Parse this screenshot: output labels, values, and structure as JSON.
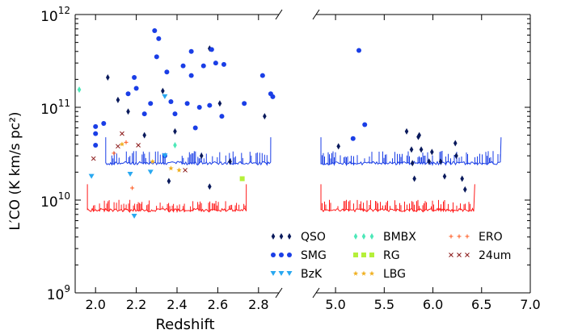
{
  "chart_data": {
    "type": "scatter",
    "title": "",
    "xlabel": "Redshift",
    "ylabel": "L′CO (K km/s pc²)",
    "y_scale": "log",
    "ylim": [
      1000000000.0,
      1000000000000.0
    ],
    "y_ticks": [
      {
        "value": 1000000000.0,
        "base": "10",
        "exp": "9"
      },
      {
        "value": 10000000000.0,
        "base": "10",
        "exp": "10"
      },
      {
        "value": 100000000000.0,
        "base": "10",
        "exp": "11"
      },
      {
        "value": 1000000000000.0,
        "base": "10",
        "exp": "12"
      }
    ],
    "panels": [
      {
        "name": "left",
        "xlim": [
          1.9,
          2.9
        ],
        "x_ticks": [
          "2.0",
          "2.2",
          "2.4",
          "2.6",
          "2.8"
        ]
      },
      {
        "name": "right",
        "xlim": [
          4.8,
          7.0
        ],
        "x_ticks": [
          "5.0",
          "5.5",
          "6.0",
          "6.5",
          "7.0"
        ]
      }
    ],
    "series": [
      {
        "name": "QSO",
        "marker": "diamond",
        "color": "#0a1a5c",
        "points": [
          [
            2.06,
            210000000000.0
          ],
          [
            2.11,
            120000000000.0
          ],
          [
            2.16,
            90000000000.0
          ],
          [
            2.24,
            50000000000.0
          ],
          [
            2.33,
            150000000000.0
          ],
          [
            2.36,
            16000000000.0
          ],
          [
            2.39,
            55000000000.0
          ],
          [
            2.52,
            30000000000.0
          ],
          [
            2.56,
            14000000000.0
          ],
          [
            2.56,
            430000000000.0
          ],
          [
            2.61,
            110000000000.0
          ],
          [
            2.66,
            26000000000.0
          ],
          [
            2.83,
            80000000000.0
          ],
          [
            5.03,
            38000000000.0
          ],
          [
            5.73,
            55000000000.0
          ],
          [
            5.78,
            35000000000.0
          ],
          [
            5.79,
            25000000000.0
          ],
          [
            5.81,
            17000000000.0
          ],
          [
            5.85,
            48000000000.0
          ],
          [
            5.86,
            50000000000.0
          ],
          [
            5.88,
            35000000000.0
          ],
          [
            5.96,
            26000000000.0
          ],
          [
            5.99,
            33000000000.0
          ],
          [
            6.08,
            26000000000.0
          ],
          [
            6.12,
            18000000000.0
          ],
          [
            6.23,
            41000000000.0
          ],
          [
            6.24,
            30000000000.0
          ],
          [
            6.3,
            17000000000.0
          ],
          [
            6.33,
            13000000000.0
          ]
        ]
      },
      {
        "name": "SMG",
        "marker": "circle",
        "color": "#1a3ee6",
        "points": [
          [
            2.0,
            62000000000.0
          ],
          [
            2.0,
            52000000000.0
          ],
          [
            2.0,
            39000000000.0
          ],
          [
            2.04,
            67000000000.0
          ],
          [
            2.16,
            140000000000.0
          ],
          [
            2.19,
            210000000000.0
          ],
          [
            2.2,
            160000000000.0
          ],
          [
            2.24,
            85000000000.0
          ],
          [
            2.27,
            110000000000.0
          ],
          [
            2.29,
            670000000000.0
          ],
          [
            2.3,
            350000000000.0
          ],
          [
            2.31,
            550000000000.0
          ],
          [
            2.34,
            30000000000.0
          ],
          [
            2.35,
            240000000000.0
          ],
          [
            2.37,
            115000000000.0
          ],
          [
            2.39,
            85000000000.0
          ],
          [
            2.43,
            280000000000.0
          ],
          [
            2.45,
            110000000000.0
          ],
          [
            2.47,
            400000000000.0
          ],
          [
            2.47,
            220000000000.0
          ],
          [
            2.49,
            60000000000.0
          ],
          [
            2.51,
            100000000000.0
          ],
          [
            2.53,
            280000000000.0
          ],
          [
            2.56,
            105000000000.0
          ],
          [
            2.57,
            420000000000.0
          ],
          [
            2.59,
            300000000000.0
          ],
          [
            2.62,
            80000000000.0
          ],
          [
            2.63,
            290000000000.0
          ],
          [
            2.73,
            110000000000.0
          ],
          [
            2.82,
            220000000000.0
          ],
          [
            2.86,
            140000000000.0
          ],
          [
            2.87,
            130000000000.0
          ],
          [
            5.18,
            46000000000.0
          ],
          [
            5.24,
            410000000000.0
          ],
          [
            5.3,
            65000000000.0
          ]
        ]
      },
      {
        "name": "BzK",
        "marker": "triangle-down",
        "color": "#29a8f0",
        "points": [
          [
            1.98,
            18000000000.0
          ],
          [
            2.17,
            19000000000.0
          ],
          [
            2.19,
            6700000000.0
          ],
          [
            2.27,
            20000000000.0
          ],
          [
            2.34,
            130000000000.0
          ],
          [
            2.34,
            30000000000.0
          ]
        ]
      },
      {
        "name": "BMBX",
        "marker": "diamond",
        "color": "#4de8b8",
        "points": [
          [
            1.92,
            155000000000.0
          ],
          [
            2.39,
            39000000000.0
          ]
        ]
      },
      {
        "name": "RG",
        "marker": "square",
        "color": "#b5f03a",
        "points": [
          [
            2.72,
            17000000000.0
          ]
        ]
      },
      {
        "name": "LBG",
        "marker": "star",
        "color": "#f0b020",
        "points": [
          [
            2.13,
            40000000000.0
          ],
          [
            2.28,
            26000000000.0
          ],
          [
            2.37,
            22000000000.0
          ],
          [
            2.41,
            21000000000.0
          ]
        ]
      },
      {
        "name": "ERO",
        "marker": "plus",
        "color": "#ff5a1f",
        "points": [
          [
            2.09,
            32000000000.0
          ],
          [
            2.15,
            42000000000.0
          ],
          [
            2.18,
            13500000000.0
          ]
        ]
      },
      {
        "name": "24um",
        "marker": "x",
        "color": "#8b1a1a",
        "points": [
          [
            1.99,
            28000000000.0
          ],
          [
            2.13,
            52000000000.0
          ],
          [
            2.11,
            38000000000.0
          ],
          [
            2.21,
            39000000000.0
          ],
          [
            2.44,
            21000000000.0
          ]
        ]
      }
    ],
    "sensitivity_curves": [
      {
        "color": "#1a3ee6",
        "panel": "left",
        "xrange": [
          2.05,
          2.86
        ],
        "base": 25000000000.0,
        "ticks_up": 6000000000.0
      },
      {
        "color": "#ff1a1a",
        "panel": "left",
        "xrange": [
          1.96,
          2.74
        ],
        "base": 7800000000.0,
        "ticks_up": 1500000000.0
      },
      {
        "color": "#1a3ee6",
        "panel": "right",
        "xrange": [
          4.85,
          6.7
        ],
        "base": 25000000000.0,
        "ticks_up": 6000000000.0
      },
      {
        "color": "#ff1a1a",
        "panel": "right",
        "xrange": [
          4.85,
          6.43
        ],
        "base": 7800000000.0,
        "ticks_up": 1500000000.0
      }
    ],
    "legend": {
      "placement": "bottom-right",
      "columns": [
        [
          "QSO",
          "SMG",
          "BzK"
        ],
        [
          "BMBX",
          "RG",
          "LBG"
        ],
        [
          "ERO",
          "24um"
        ]
      ]
    }
  }
}
